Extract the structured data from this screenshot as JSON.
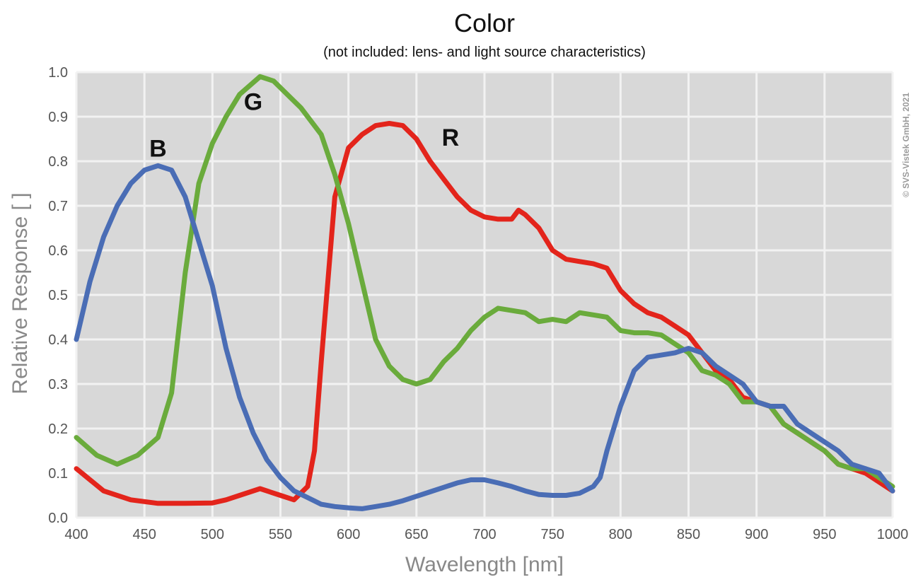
{
  "chart_data": {
    "type": "line",
    "title": "Color",
    "subtitle": "(not included: lens- and light source characteristics)",
    "xlabel": "Wavelength [nm]",
    "ylabel": "Relative Response [ ]",
    "xlim": [
      400,
      1000
    ],
    "ylim": [
      0.0,
      1.0
    ],
    "xticks": [
      "400",
      "450",
      "500",
      "550",
      "600",
      "650",
      "700",
      "750",
      "800",
      "850",
      "900",
      "950",
      "1000"
    ],
    "yticks": [
      "0.0",
      "0.1",
      "0.2",
      "0.3",
      "0.4",
      "0.5",
      "0.6",
      "0.7",
      "0.8",
      "0.9",
      "1.0"
    ],
    "grid": true,
    "copyright": "© SVS-Vistek GmbH, 2021",
    "series": [
      {
        "name": "R",
        "color": "#e3241b",
        "x": [
          400,
          420,
          440,
          460,
          480,
          500,
          510,
          520,
          535,
          550,
          560,
          570,
          575,
          580,
          590,
          600,
          610,
          620,
          630,
          640,
          650,
          660,
          670,
          680,
          690,
          700,
          710,
          720,
          725,
          730,
          740,
          750,
          760,
          770,
          780,
          790,
          800,
          810,
          820,
          830,
          840,
          850,
          860,
          870,
          880,
          890,
          900,
          910,
          920,
          930,
          940,
          950,
          960,
          970,
          980,
          990,
          1000
        ],
        "y": [
          0.11,
          0.06,
          0.04,
          0.032,
          0.032,
          0.033,
          0.04,
          0.05,
          0.065,
          0.05,
          0.04,
          0.07,
          0.15,
          0.35,
          0.72,
          0.83,
          0.86,
          0.88,
          0.885,
          0.88,
          0.85,
          0.8,
          0.76,
          0.72,
          0.69,
          0.675,
          0.67,
          0.67,
          0.69,
          0.68,
          0.65,
          0.6,
          0.58,
          0.575,
          0.57,
          0.56,
          0.51,
          0.48,
          0.46,
          0.45,
          0.43,
          0.41,
          0.37,
          0.33,
          0.31,
          0.27,
          0.26,
          0.25,
          0.21,
          0.19,
          0.17,
          0.15,
          0.12,
          0.11,
          0.1,
          0.08,
          0.06
        ]
      },
      {
        "name": "G",
        "color": "#6aab3c",
        "x": [
          400,
          415,
          430,
          445,
          460,
          470,
          480,
          490,
          500,
          510,
          520,
          535,
          545,
          555,
          565,
          580,
          590,
          600,
          610,
          620,
          630,
          640,
          650,
          660,
          670,
          680,
          690,
          700,
          710,
          720,
          730,
          740,
          750,
          760,
          770,
          780,
          790,
          800,
          810,
          820,
          830,
          840,
          850,
          860,
          870,
          880,
          890,
          900,
          910,
          920,
          930,
          940,
          950,
          960,
          970,
          980,
          990,
          1000
        ],
        "y": [
          0.18,
          0.14,
          0.12,
          0.14,
          0.18,
          0.28,
          0.55,
          0.75,
          0.84,
          0.9,
          0.95,
          0.99,
          0.98,
          0.95,
          0.92,
          0.86,
          0.77,
          0.66,
          0.53,
          0.4,
          0.34,
          0.31,
          0.3,
          0.31,
          0.35,
          0.38,
          0.42,
          0.45,
          0.47,
          0.465,
          0.46,
          0.44,
          0.445,
          0.44,
          0.46,
          0.455,
          0.45,
          0.42,
          0.415,
          0.415,
          0.41,
          0.39,
          0.37,
          0.33,
          0.32,
          0.3,
          0.26,
          0.26,
          0.25,
          0.21,
          0.19,
          0.17,
          0.15,
          0.12,
          0.11,
          0.11,
          0.09,
          0.07
        ]
      },
      {
        "name": "B",
        "color": "#4a6db5",
        "x": [
          400,
          410,
          420,
          430,
          440,
          450,
          460,
          470,
          480,
          490,
          500,
          510,
          520,
          530,
          540,
          550,
          560,
          570,
          580,
          590,
          600,
          610,
          620,
          630,
          640,
          650,
          660,
          670,
          680,
          690,
          700,
          710,
          720,
          730,
          740,
          750,
          760,
          770,
          780,
          785,
          790,
          800,
          810,
          820,
          830,
          840,
          850,
          860,
          870,
          880,
          890,
          900,
          910,
          920,
          930,
          940,
          950,
          960,
          970,
          980,
          990,
          1000
        ],
        "y": [
          0.4,
          0.53,
          0.63,
          0.7,
          0.75,
          0.78,
          0.79,
          0.78,
          0.72,
          0.62,
          0.52,
          0.38,
          0.27,
          0.19,
          0.13,
          0.09,
          0.06,
          0.045,
          0.03,
          0.025,
          0.022,
          0.02,
          0.025,
          0.03,
          0.038,
          0.048,
          0.058,
          0.068,
          0.078,
          0.085,
          0.085,
          0.078,
          0.07,
          0.06,
          0.052,
          0.05,
          0.05,
          0.055,
          0.07,
          0.09,
          0.15,
          0.25,
          0.33,
          0.36,
          0.365,
          0.37,
          0.38,
          0.37,
          0.34,
          0.32,
          0.3,
          0.26,
          0.25,
          0.25,
          0.21,
          0.19,
          0.17,
          0.15,
          0.12,
          0.11,
          0.1,
          0.06
        ]
      }
    ],
    "label_positions": {
      "R": {
        "x": 675,
        "y": 0.835
      },
      "G": {
        "x": 530,
        "y": 0.915
      },
      "B": {
        "x": 460,
        "y": 0.81
      }
    }
  }
}
